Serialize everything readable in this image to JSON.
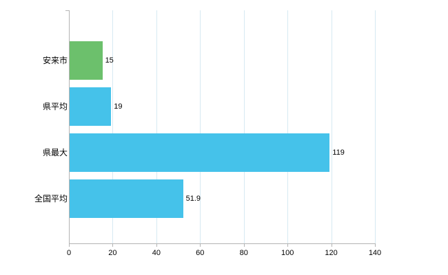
{
  "chart_data": {
    "type": "bar",
    "orientation": "horizontal",
    "title": "",
    "xlabel": "",
    "ylabel": "",
    "categories": [
      "安来市",
      "県平均",
      "県最大",
      "全国平均"
    ],
    "values": [
      15,
      19,
      119,
      51.9
    ],
    "value_labels": [
      "15",
      "19",
      "119",
      "51.9"
    ],
    "bar_colors": [
      "#6cc06c",
      "#45c2ea",
      "#45c2ea",
      "#45c2ea"
    ],
    "xlim": [
      0,
      140
    ],
    "x_ticks": [
      0,
      20,
      40,
      60,
      80,
      100,
      120,
      140
    ],
    "grid": true,
    "gridline_color": "#d6e9f2",
    "axis_color": "#b3b3b3",
    "background_color": "#ffffff",
    "legend": "none"
  }
}
